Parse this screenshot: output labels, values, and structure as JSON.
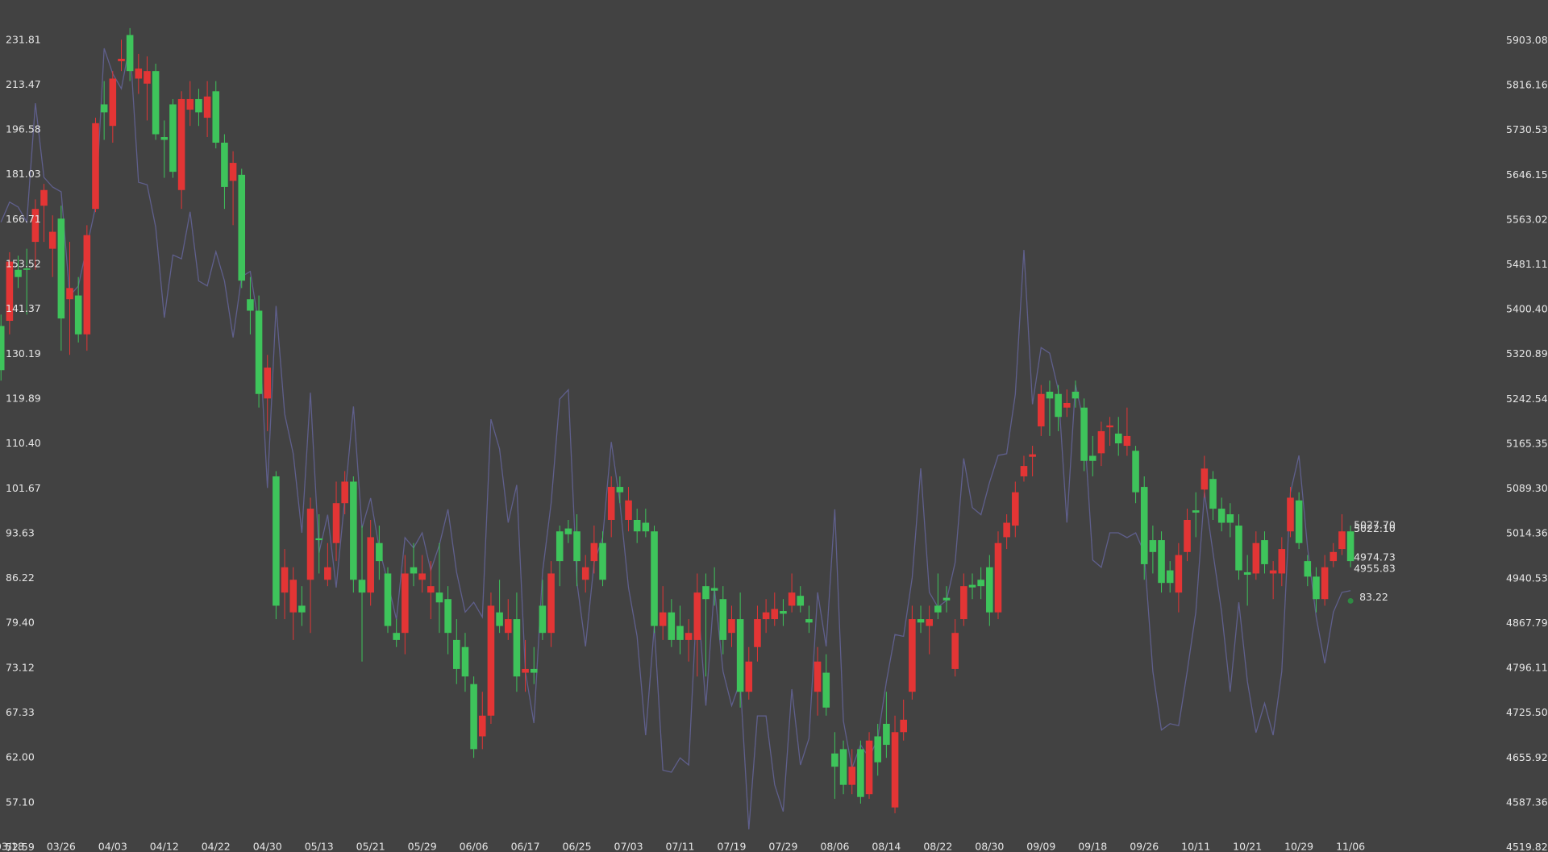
{
  "chart_data": {
    "type": "candlestick",
    "log": true,
    "grid": false,
    "up_color": "#3ec45b",
    "down_color": "#e33535",
    "ylim": [
      52.15,
      249.55
    ],
    "yticks": [
      {
        "value": 52.59,
        "label": "52.59"
      },
      {
        "value": 57.1,
        "label": "57.10"
      },
      {
        "value": 62,
        "label": "62.00"
      },
      67.33,
      73.12,
      {
        "value": 79.4,
        "label": "79.40"
      },
      86.22,
      93.63,
      101.67,
      {
        "value": 110.4,
        "label": "110.40"
      },
      119.89,
      130.19,
      141.37,
      153.52,
      166.71,
      181.03,
      196.58,
      213.47,
      231.81
    ],
    "y2lim": [
      4513.2,
      5983.0
    ],
    "y2ticks": [
      4519.82,
      4587.36,
      4655.92,
      {
        "value": 4725.5,
        "label": "4725.50"
      },
      4796.11,
      4867.79,
      4940.53,
      5014.36,
      {
        "value": 5089.3,
        "label": "5089.30"
      },
      5165.35,
      5242.54,
      5320.89,
      {
        "value": 5400.4,
        "label": "5400.40"
      },
      5481.11,
      5563.02,
      5646.15,
      5730.53,
      5816.16,
      5903.08
    ],
    "categories": [
      null,
      "03/18",
      null,
      null,
      null,
      null,
      null,
      "03/26",
      null,
      null,
      null,
      null,
      null,
      "04/03",
      null,
      null,
      null,
      null,
      null,
      "04/12",
      null,
      null,
      null,
      null,
      null,
      "04/22",
      null,
      null,
      null,
      null,
      null,
      "04/30",
      null,
      null,
      null,
      null,
      null,
      "05/13",
      null,
      null,
      null,
      null,
      null,
      "05/21",
      null,
      null,
      null,
      null,
      null,
      "05/29",
      null,
      null,
      null,
      null,
      null,
      "06/06",
      null,
      null,
      null,
      null,
      null,
      "06/17",
      null,
      null,
      null,
      null,
      null,
      "06/25",
      null,
      null,
      null,
      null,
      null,
      "07/03",
      null,
      null,
      null,
      null,
      null,
      "07/11",
      null,
      null,
      null,
      null,
      null,
      "07/19",
      null,
      null,
      null,
      null,
      null,
      "07/29",
      null,
      null,
      null,
      null,
      null,
      "08/06",
      null,
      null,
      null,
      null,
      null,
      "08/14",
      null,
      null,
      null,
      null,
      null,
      "08/22",
      null,
      null,
      null,
      null,
      null,
      "08/30",
      null,
      null,
      null,
      null,
      null,
      "09/09",
      null,
      null,
      null,
      null,
      null,
      "09/18",
      null,
      null,
      null,
      null,
      null,
      "09/26",
      null,
      null,
      null,
      null,
      null,
      "10/11",
      null,
      null,
      null,
      null,
      null,
      "10/21",
      null,
      null,
      null,
      null,
      null,
      "10/29",
      null,
      null,
      null,
      null,
      null,
      "11/06"
    ],
    "candles": {
      "open": [
        126.4,
        154.3,
        150,
        152,
        170,
        176,
        163,
        139,
        147,
        135,
        162,
        199,
        203,
        216,
        224,
        219,
        220,
        219,
        195,
        193,
        182,
        208,
        208,
        203,
        209,
        192,
        177,
        185,
        149,
        141,
        121,
        127,
        82,
        88,
        86,
        81,
        98,
        92.5,
        88,
        99,
        103,
        86,
        84,
        93,
        89,
        79,
        77,
        87,
        87,
        87,
        85,
        82.5,
        78,
        73,
        72,
        63,
        67,
        82,
        79,
        80,
        72,
        73,
        72.5,
        78,
        87,
        89,
        93.5,
        89,
        88,
        92,
        86,
        102,
        101,
        99.5,
        94,
        94,
        79,
        81,
        77,
        77,
        78,
        84,
        83,
        84.3,
        77,
        80,
        70,
        74,
        80,
        81,
        81.5,
        80.8,
        84,
        82,
        79.5,
        74,
        68,
        61,
        59,
        61,
        57.7,
        64,
        61.5,
        63.5,
        65,
        66.5,
        80,
        79.5,
        80,
        81,
        82.8,
        78,
        85,
        84.8,
        85,
        81,
        92,
        95.5,
        101,
        106,
        108.3,
        121,
        120,
        116,
        119,
        120,
        107,
        107,
        113,
        114.2,
        110.5,
        112,
        101,
        88.5,
        90.5,
        85.5,
        85.5,
        90,
        96,
        97.3,
        105.5,
        98,
        95.5,
        95.5,
        87.5,
        86.8,
        92,
        88.5,
        87.5,
        91,
        100,
        92,
        86.5,
        83,
        88,
        90.5,
        94,
        89
      ],
      "high": [
        140,
        157,
        156,
        158,
        173,
        178,
        168,
        171,
        160,
        150,
        165,
        201,
        215,
        219,
        232,
        237,
        226,
        225,
        222,
        200,
        208,
        211,
        215,
        212,
        215,
        215,
        195,
        189,
        183,
        150,
        145,
        130,
        105,
        91,
        88,
        85,
        100,
        97,
        92,
        103,
        105,
        104,
        95,
        96,
        95,
        88,
        80,
        90,
        92,
        90,
        89,
        92,
        85,
        80,
        78,
        72,
        70,
        84,
        86,
        83,
        84,
        77,
        76,
        86,
        89,
        95,
        96,
        97,
        90,
        95,
        94,
        104,
        104,
        102,
        98,
        98,
        95,
        85,
        83,
        82,
        80,
        87,
        87,
        88,
        85,
        82,
        84,
        76,
        82,
        83,
        84,
        83,
        87,
        85,
        82,
        76,
        75,
        65,
        64,
        63,
        64,
        65,
        66,
        70,
        67,
        69,
        82,
        82,
        82,
        87,
        85,
        80,
        87,
        87,
        88,
        90,
        94,
        97,
        103,
        108,
        110,
        123,
        124,
        123,
        122,
        124,
        120,
        112,
        115,
        116,
        116,
        118,
        110,
        104,
        95,
        94,
        89,
        92,
        98,
        101,
        108,
        105,
        100,
        99,
        97,
        90,
        94,
        94,
        89,
        93,
        102,
        101,
        90,
        88,
        90,
        92,
        97,
        95
      ],
      "low": [
        124,
        135,
        147,
        140,
        152,
        160,
        150,
        131,
        130,
        133,
        131,
        169,
        193,
        192,
        219,
        215,
        210,
        200,
        193,
        180,
        180,
        170,
        198,
        198,
        194,
        190,
        170,
        165,
        147,
        135,
        118,
        113,
        80,
        80,
        77,
        79,
        78,
        87,
        85,
        89,
        97,
        84,
        74,
        82,
        86,
        78,
        76,
        75,
        85,
        84,
        80,
        78,
        75,
        71,
        70,
        62,
        63,
        66,
        78,
        77,
        70,
        70,
        71,
        77,
        76,
        85,
        92,
        85,
        84,
        87,
        85,
        93,
        99,
        94,
        92,
        93,
        78,
        77,
        76,
        75,
        74,
        72,
        72,
        82,
        75,
        76,
        68,
        69,
        74,
        78,
        79,
        79,
        81,
        81,
        78,
        67,
        67,
        57.5,
        58,
        58,
        57,
        57.5,
        60,
        62,
        56,
        64,
        69,
        78,
        75,
        80,
        81,
        72,
        79,
        83,
        83,
        79,
        80,
        91,
        93,
        103,
        104,
        112,
        112,
        113,
        116,
        118,
        105,
        104,
        106,
        110,
        108,
        108,
        99,
        86,
        87,
        84,
        84,
        81,
        89,
        93,
        100,
        96,
        94,
        93,
        86,
        82,
        86,
        87,
        83,
        85,
        93,
        91,
        85,
        81,
        82,
        88,
        90,
        88
      ],
      "close": [
        137.1,
        138.4,
        152,
        152.4,
        160,
        171,
        158,
        167,
        144,
        145,
        135,
        170,
        206,
        198,
        223,
        234,
        216,
        214,
        219,
        194,
        206,
        176,
        204,
        208,
        201,
        211,
        192,
        179,
        181,
        144,
        141,
        120,
        104,
        84,
        81,
        82,
        86,
        92.8,
        86,
        92,
        99,
        103,
        86,
        84,
        92,
        87,
        78,
        78,
        88,
        86,
        84,
        84,
        83,
        77,
        76,
        71,
        64.5,
        67,
        81,
        78,
        80,
        72.5,
        73,
        82,
        78,
        94,
        94.5,
        94,
        86,
        89,
        92,
        96,
        102,
        96,
        96,
        95.5,
        94,
        79,
        81,
        79,
        77,
        77,
        85,
        84.7,
        83,
        78,
        80,
        70,
        76,
        80,
        80,
        81.2,
        82,
        83.5,
        80,
        70,
        72.5,
        62.5,
        63,
        59,
        63,
        58,
        64.5,
        66,
        56.6,
        65,
        70,
        80,
        79,
        82,
        83.2,
        73,
        80,
        85.2,
        86,
        88,
        81,
        93,
        95,
        104,
        107.8,
        114,
        121.5,
        121,
        118,
        121.5,
        118,
        108,
        108.5,
        113.8,
        112.5,
        110,
        109,
        102,
        92.5,
        92.5,
        87.5,
        84,
        90.5,
        97.7,
        101.5,
        103.5,
        98,
        97,
        95,
        87.2,
        87,
        92.5,
        87,
        87,
        94,
        99.5,
        89,
        86.5,
        83,
        89,
        91,
        94
      ]
    },
    "line": {
      "axis": "y2",
      "color": "#5f5f8c",
      "values": [
        5559,
        5596,
        5587,
        5559,
        5782,
        5642,
        5624,
        5615,
        5425,
        5443,
        5514,
        5587,
        5888,
        5839,
        5810,
        5897,
        5633,
        5628,
        5550,
        5386,
        5499,
        5492,
        5578,
        5452,
        5443,
        5505,
        5452,
        5351,
        5460,
        5469,
        5372,
        5091,
        5407,
        5217,
        5149,
        5016,
        5254,
        4983,
        5046,
        4926,
        5074,
        5230,
        5024,
        5074,
        4991,
        4934,
        4874,
        5008,
        4991,
        5016,
        4954,
        4996,
        5055,
        4951,
        4886,
        4902,
        4878,
        5208,
        5157,
        5033,
        5096,
        4791,
        4710,
        4951,
        5066,
        5243,
        5259,
        4934,
        4831,
        4967,
        5008,
        5169,
        5066,
        4926,
        4847,
        4691,
        4863,
        4637,
        4634,
        4656,
        4645,
        4918,
        4737,
        4926,
        4791,
        4737,
        4775,
        4547,
        4721,
        4721,
        4615,
        4574,
        4763,
        4645,
        4686,
        4918,
        4831,
        5055,
        4713,
        4640,
        4676,
        4656,
        4686,
        4775,
        4850,
        4847,
        4942,
        5124,
        4918,
        4894,
        4905,
        4967,
        5141,
        5058,
        5046,
        5100,
        5146,
        5149,
        5251,
        5508,
        5234,
        5333,
        5323,
        5259,
        5033,
        5268,
        5200,
        4971,
        4959,
        5016,
        5016,
        5008,
        5016,
        4983,
        4791,
        4699,
        4709,
        4706,
        4791,
        4886,
        5083,
        4983,
        4886,
        4759,
        4902,
        4775,
        4695,
        4741,
        4691,
        4791,
        5083,
        5146,
        4991,
        4878,
        4804,
        4886,
        4918,
        4921
      ]
    },
    "annotations": [
      {
        "value": 5027.7,
        "label": "5027.70",
        "axis": "y2"
      },
      {
        "value": 5022.1,
        "label": "5022.10",
        "axis": "y2"
      },
      {
        "value": 4974.73,
        "label": "4974.73",
        "axis": "y2"
      },
      {
        "value": 4955.83,
        "label": "4955.83",
        "axis": "y2"
      },
      {
        "value": 83.22,
        "label": "83.22",
        "axis": "y",
        "marker": true,
        "color": "#2f8a43"
      }
    ]
  }
}
